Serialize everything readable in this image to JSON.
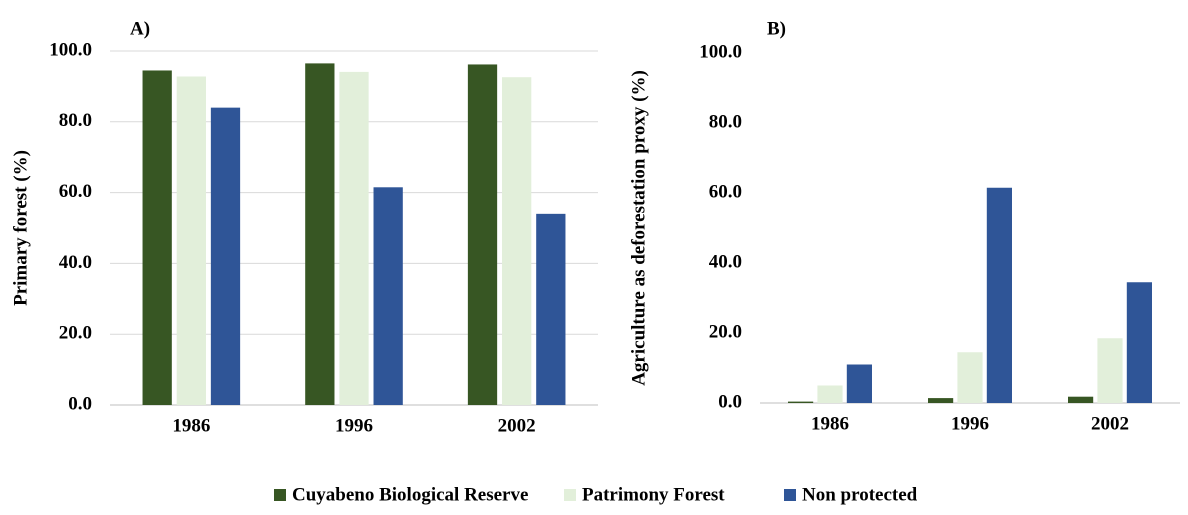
{
  "chart_data": [
    {
      "type": "bar",
      "title": "A)",
      "y_label": "Primary forest (%)",
      "categories": [
        "1986",
        "1996",
        "2002"
      ],
      "series": [
        {
          "name": "Cuyabeno Biological Reserve",
          "color": "#375623",
          "values": [
            94.5,
            96.5,
            96.2
          ]
        },
        {
          "name": "Patrimony Forest",
          "color": "#e2efda",
          "values": [
            92.8,
            94.1,
            92.6
          ]
        },
        {
          "name": "Non protected",
          "color": "#2f5597",
          "values": [
            84.0,
            61.5,
            54.0
          ]
        }
      ],
      "ylim": [
        0,
        100
      ],
      "yticks": [
        {
          "value": 0,
          "label": "0.0"
        },
        {
          "value": 20,
          "label": "20.0"
        },
        {
          "value": 40,
          "label": "40.0"
        },
        {
          "value": 60,
          "label": "60.0"
        },
        {
          "value": 80,
          "label": "80.0"
        },
        {
          "value": 100,
          "label": "100.0"
        }
      ],
      "grid": true
    },
    {
      "type": "bar",
      "title": "B)",
      "y_label": "Agriculture as deforestation proxy (%)",
      "categories": [
        "1986",
        "1996",
        "2002"
      ],
      "series": [
        {
          "name": "Cuyabeno Biological Reserve",
          "color": "#375623",
          "values": [
            0.4,
            1.4,
            1.8
          ]
        },
        {
          "name": "Patrimony Forest",
          "color": "#e2efda",
          "values": [
            5.0,
            14.5,
            18.5
          ]
        },
        {
          "name": "Non protected",
          "color": "#2f5597",
          "values": [
            11.0,
            61.5,
            34.5
          ]
        }
      ],
      "ylim": [
        0,
        100
      ],
      "yticks": [
        {
          "value": 0,
          "label": "0.0"
        },
        {
          "value": 20,
          "label": "20.0"
        },
        {
          "value": 40,
          "label": "40.0"
        },
        {
          "value": 60,
          "label": "60.0"
        },
        {
          "value": 80,
          "label": "80.0"
        },
        {
          "value": 100,
          "label": "100.0"
        }
      ],
      "grid": false
    }
  ]
}
